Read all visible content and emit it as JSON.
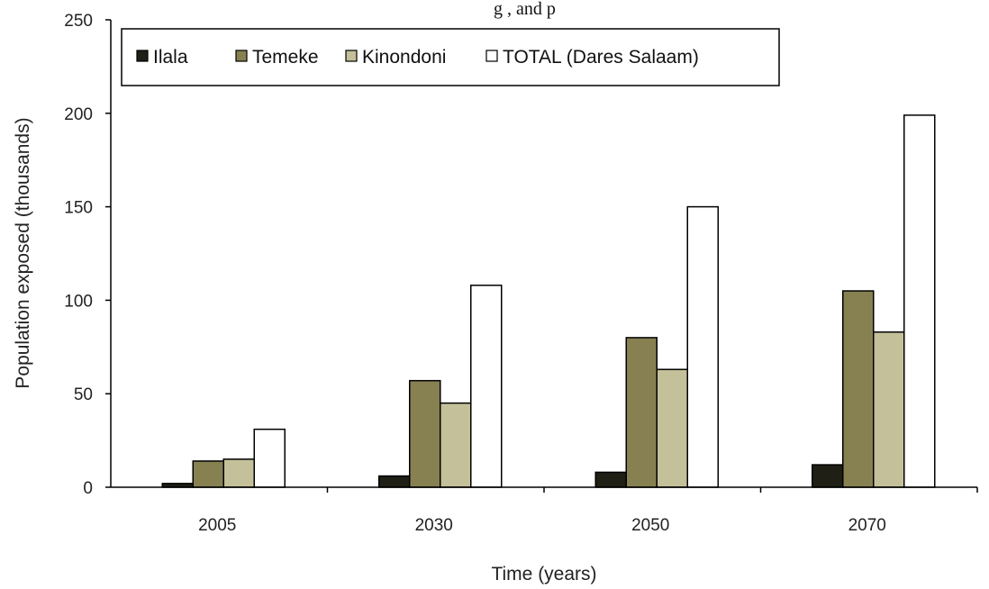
{
  "top_text_fragment": "g                    , and p",
  "chart_data": {
    "type": "bar",
    "title": "",
    "xlabel": "Time (years)",
    "ylabel": "Population exposed (thousands)",
    "ylim": [
      0,
      250
    ],
    "yticks": [
      0,
      50,
      100,
      150,
      200,
      250
    ],
    "categories": [
      "2005",
      "2030",
      "2050",
      "2070"
    ],
    "series": [
      {
        "name": "Ilala",
        "color": "#1f1f16",
        "values": [
          2,
          6,
          8,
          12
        ]
      },
      {
        "name": "Temeke",
        "color": "#878152",
        "values": [
          14,
          57,
          80,
          105
        ]
      },
      {
        "name": "Kinondoni",
        "color": "#c4c09a",
        "values": [
          15,
          45,
          63,
          83
        ]
      },
      {
        "name": "TOTAL (Dares Salaam)",
        "color": "#ffffff",
        "values": [
          31,
          108,
          150,
          199
        ]
      }
    ],
    "legend_position": "top",
    "grid": false
  }
}
